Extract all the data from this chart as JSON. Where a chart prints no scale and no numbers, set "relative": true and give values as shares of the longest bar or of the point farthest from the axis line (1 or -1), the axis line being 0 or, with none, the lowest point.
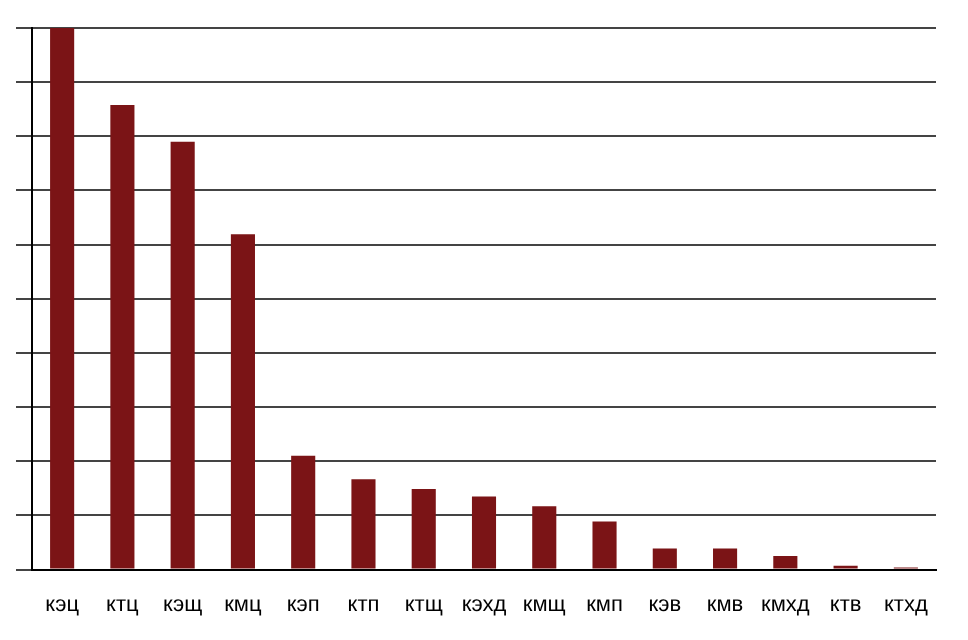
{
  "chart_data": {
    "type": "bar",
    "relative": true,
    "grid": "y",
    "legend": false,
    "categories": [
      "кэц",
      "ктц",
      "кэщ",
      "кмц",
      "кэп",
      "ктп",
      "ктщ",
      "кэхд",
      "кмщ",
      "кмп",
      "кэв",
      "кмв",
      "кмхд",
      "ктв",
      "ктхд"
    ],
    "series": [
      {
        "color": "#7b1416",
        "values": [
          1,
          0.858,
          0.79,
          0.619,
          0.21,
          0.167,
          0.149,
          0.135,
          0.117,
          0.089,
          0.039,
          0.039,
          0.025,
          0.007,
          0.004
        ]
      }
    ]
  }
}
